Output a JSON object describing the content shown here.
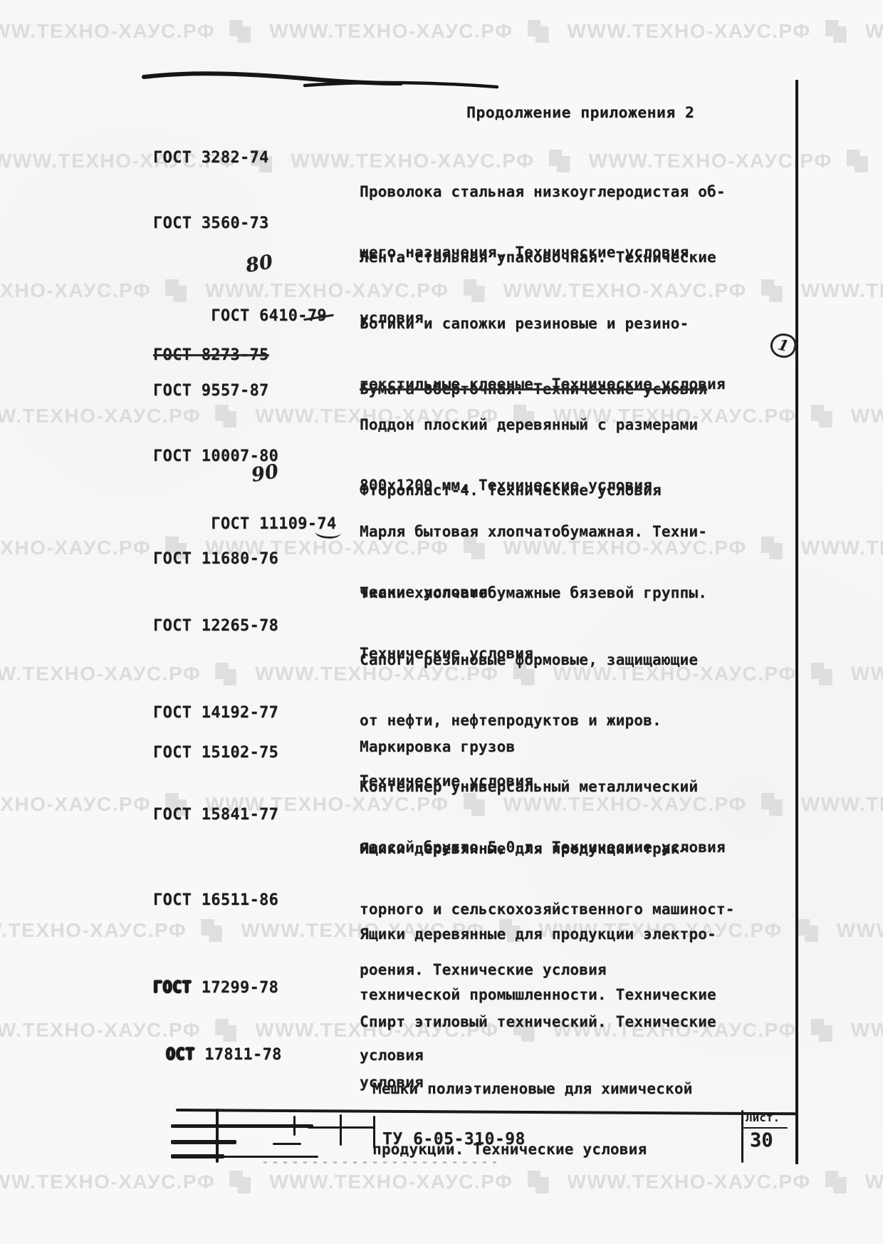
{
  "page": {
    "header_title": "Продолжение приложения 2"
  },
  "watermark": {
    "text": "WWW.ТЕХНО-ХАУС.РФ",
    "icon": "techno-haus-logo",
    "color": "#dcdcdc"
  },
  "entries": [
    {
      "number": "ГОСТ 3282-74",
      "lines": [
        "Проволока стальная низкоуглеродистая об-",
        "щего назначения. Технические условия"
      ]
    },
    {
      "number": "ГОСТ 3560-73",
      "lines": [
        "Лента стальная упаковочная. Технические",
        "условия"
      ]
    },
    {
      "number_prefix": "ГОСТ 6410-",
      "year": "79",
      "handwritten_year": "80",
      "lines": [
        "Ботики и сапожки резиновые и резино-",
        "текстильные клееные. Технические условия"
      ]
    },
    {
      "number": "ГОСТ 8273-75",
      "struck": true,
      "margin_mark": "1",
      "lines": [
        "Бумага оберточная. Технические условия"
      ]
    },
    {
      "number": "ГОСТ 9557-87",
      "lines": [
        "Поддон плоский деревянный с размерами",
        "800х1200 мм. Технические условия"
      ]
    },
    {
      "number": "ГОСТ 10007-80",
      "lines": [
        "Фторопласт-4. Технические условия"
      ]
    },
    {
      "number_prefix": "ГОСТ 11109-",
      "year": "74",
      "handwritten_year": "90",
      "lines": [
        "Марля бытовая хлопчатобумажная. Техни-",
        "ческие условия"
      ]
    },
    {
      "number": "ГОСТ 11680-76",
      "lines": [
        "Ткани хлопчатобумажные бязевой группы.",
        "Технические условия"
      ]
    },
    {
      "number": "ГОСТ 12265-78",
      "lines": [
        "Сапоги резиновые формовые, защищающие",
        "от нефти, нефтепродуктов и жиров.",
        "Технические условия"
      ]
    },
    {
      "number": "ГОСТ 14192-77",
      "lines": [
        "Маркировка грузов"
      ]
    },
    {
      "number": "ГОСТ 15102-75",
      "lines": [
        "Контейнер универсальный металлический",
        "массой брутто 5,0 т. Технические условия"
      ]
    },
    {
      "number": "ГОСТ 15841-77",
      "lines": [
        "Ящики деревянные для продукции трак-",
        "торного и сельскохозяйственного машиност-",
        "роения. Технические условия"
      ]
    },
    {
      "number": "ГОСТ 16511-86",
      "lines": [
        "Ящики деревянные для продукции электро-",
        "технической промышленности. Технические",
        "условия"
      ]
    },
    {
      "number_word": "ГОСТ",
      "number_tail": " 17299-78",
      "lines": [
        "Спирт этиловый технический. Технические",
        "условия"
      ]
    },
    {
      "number_word": "ОСТ",
      "number_tail": " 17811-78",
      "lines": [
        "Мешки полиэтиленовые для химической",
        "продукции. Технические условия"
      ]
    }
  ],
  "title_block": {
    "document_number": "ТУ 6-05-310-98",
    "sheet_label": "Лист.",
    "sheet_number": "30"
  }
}
